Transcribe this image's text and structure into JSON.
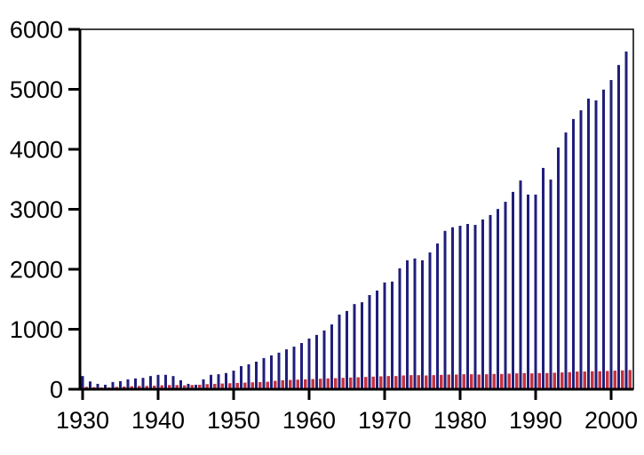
{
  "chart_data": {
    "type": "bar",
    "title": "",
    "xlabel": "",
    "ylabel": "",
    "grid": false,
    "legend": "none",
    "background_color": "#ffffff",
    "axis_color": "#000000",
    "ylim": [
      0,
      6000
    ],
    "y_tick_values": [
      0,
      1000,
      2000,
      3000,
      4000,
      5000,
      6000
    ],
    "y_tick_labels": [
      "0",
      "1000",
      "2000",
      "3000",
      "4000",
      "5000",
      "6000"
    ],
    "x_tick_values": [
      1930,
      1940,
      1950,
      1960,
      1970,
      1980,
      1990,
      2000
    ],
    "x_tick_labels": [
      "1930",
      "1940",
      "1950",
      "1960",
      "1970",
      "1980",
      "1990",
      "2000"
    ],
    "categories": [
      1930,
      1931,
      1932,
      1933,
      1934,
      1935,
      1936,
      1937,
      1938,
      1939,
      1940,
      1941,
      1942,
      1943,
      1944,
      1945,
      1946,
      1947,
      1948,
      1949,
      1950,
      1951,
      1952,
      1953,
      1954,
      1955,
      1956,
      1957,
      1958,
      1959,
      1960,
      1961,
      1962,
      1963,
      1964,
      1965,
      1966,
      1967,
      1968,
      1969,
      1970,
      1971,
      1972,
      1973,
      1974,
      1975,
      1976,
      1977,
      1978,
      1979,
      1980,
      1981,
      1982,
      1983,
      1984,
      1985,
      1986,
      1987,
      1988,
      1989,
      1990,
      1991,
      1992,
      1993,
      1994,
      1995,
      1996,
      1997,
      1998,
      1999,
      2000,
      2001,
      2002
    ],
    "series": [
      {
        "name": "navy-tall-bars",
        "color": "#201f7a",
        "values": [
          220,
          130,
          90,
          75,
          120,
          135,
          165,
          180,
          190,
          220,
          240,
          240,
          220,
          150,
          90,
          75,
          165,
          240,
          250,
          270,
          310,
          385,
          415,
          460,
          520,
          565,
          610,
          665,
          710,
          770,
          845,
          905,
          980,
          1080,
          1245,
          1305,
          1420,
          1450,
          1570,
          1645,
          1780,
          1795,
          2015,
          2150,
          2180,
          2150,
          2280,
          2430,
          2640,
          2700,
          2725,
          2755,
          2740,
          2830,
          2905,
          3005,
          3125,
          3290,
          3480,
          3245,
          3245,
          3690,
          3495,
          4030,
          4280,
          4505,
          4650,
          4845,
          4815,
          4995,
          5155,
          5405,
          5630
        ]
      },
      {
        "name": "red-short-bars",
        "color": "#c53340",
        "values": [
          40,
          35,
          30,
          30,
          40,
          45,
          50,
          55,
          55,
          60,
          65,
          70,
          70,
          65,
          70,
          75,
          85,
          90,
          95,
          100,
          105,
          110,
          115,
          120,
          125,
          140,
          150,
          155,
          160,
          165,
          170,
          175,
          180,
          185,
          190,
          195,
          200,
          205,
          210,
          215,
          220,
          220,
          230,
          235,
          235,
          230,
          235,
          240,
          245,
          245,
          250,
          250,
          245,
          250,
          255,
          255,
          260,
          265,
          270,
          265,
          270,
          270,
          275,
          280,
          285,
          295,
          295,
          300,
          300,
          305,
          310,
          315,
          320
        ]
      }
    ]
  }
}
